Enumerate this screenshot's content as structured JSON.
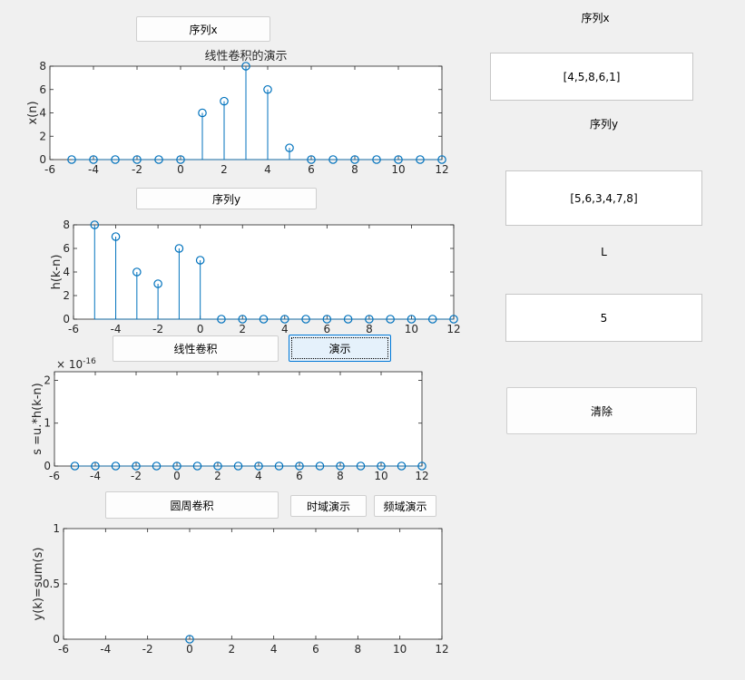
{
  "buttons": {
    "seq_x": "序列x",
    "seq_y": "序列y",
    "linear_conv": "线性卷积",
    "demo": "演示",
    "circular_conv": "圆周卷积",
    "time_demo": "时域演示",
    "freq_demo": "频域演示",
    "clear": "清除"
  },
  "right_panel": {
    "seq_x_label": "序列x",
    "seq_x_value": "[4,5,8,6,1]",
    "seq_y_label": "序列y",
    "seq_y_value": "[5,6,3,4,7,8]",
    "L_label": "L",
    "L_value": "5"
  },
  "colors": {
    "stem": "#0072bd",
    "axis": "#262626"
  },
  "chart_data": [
    {
      "type": "stem",
      "title": "线性卷积的演示",
      "ylabel": "x(n)",
      "xlim": [
        -6,
        12
      ],
      "ylim": [
        0,
        8
      ],
      "xticks": [
        -6,
        -4,
        -2,
        0,
        2,
        4,
        6,
        8,
        10,
        12
      ],
      "yticks": [
        0,
        2,
        4,
        6,
        8
      ],
      "x": [
        -5,
        -4,
        -3,
        -2,
        -1,
        0,
        1,
        2,
        3,
        4,
        5,
        6,
        7,
        8,
        9,
        10,
        11,
        12
      ],
      "values": [
        0,
        0,
        0,
        0,
        0,
        0,
        4,
        5,
        8,
        6,
        1,
        0,
        0,
        0,
        0,
        0,
        0,
        0
      ]
    },
    {
      "type": "stem",
      "ylabel": "h(k-n)",
      "xlim": [
        -6,
        12
      ],
      "ylim": [
        0,
        8
      ],
      "xticks": [
        -6,
        -4,
        -2,
        0,
        2,
        4,
        6,
        8,
        10,
        12
      ],
      "yticks": [
        0,
        2,
        4,
        6,
        8
      ],
      "x": [
        -5,
        -4,
        -3,
        -2,
        -1,
        0,
        1,
        2,
        3,
        4,
        5,
        6,
        7,
        8,
        9,
        10,
        11,
        12
      ],
      "values": [
        8,
        7,
        4,
        3,
        6,
        5,
        0,
        0,
        0,
        0,
        0,
        0,
        0,
        0,
        0,
        0,
        0,
        0
      ]
    },
    {
      "type": "stem",
      "ylabel": "s =u.*h(k-n)",
      "exponent_label": "× 10",
      "exponent_power": "-16",
      "xlim": [
        -6,
        12
      ],
      "ylim": [
        0,
        2.2
      ],
      "xticks": [
        -6,
        -4,
        -2,
        0,
        2,
        4,
        6,
        8,
        10,
        12
      ],
      "yticks": [
        0,
        1,
        2
      ],
      "x": [
        -5,
        -4,
        -3,
        -2,
        -1,
        0,
        1,
        2,
        3,
        4,
        5,
        6,
        7,
        8,
        9,
        10,
        11,
        12
      ],
      "values": [
        0,
        0,
        0,
        0,
        0,
        0,
        0,
        0,
        0,
        0,
        0,
        0,
        0,
        0,
        0,
        0,
        0,
        0
      ]
    },
    {
      "type": "stem",
      "ylabel": "y(k)=sum(s)",
      "xlim": [
        -6,
        12
      ],
      "ylim": [
        0,
        1
      ],
      "xticks": [
        -6,
        -4,
        -2,
        0,
        2,
        4,
        6,
        8,
        10,
        12
      ],
      "yticks": [
        0,
        0.5,
        1
      ],
      "x": [
        0
      ],
      "values": [
        0
      ]
    }
  ]
}
